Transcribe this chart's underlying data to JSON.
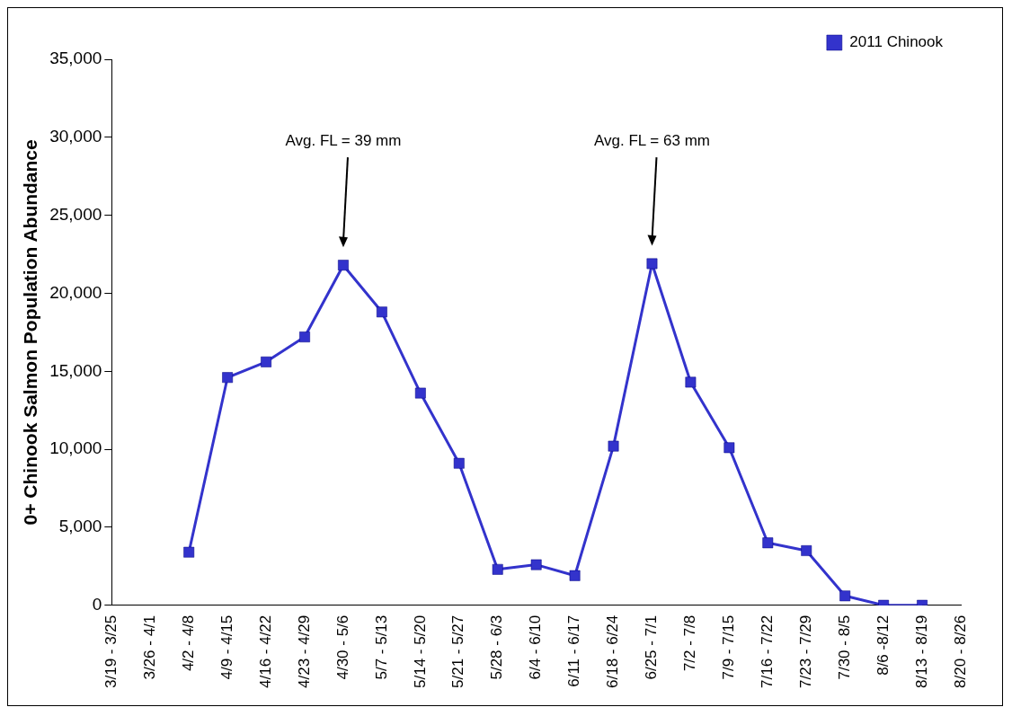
{
  "chart_data": {
    "type": "line",
    "ylabel": "0+ Chinook Salmon Population Abundance",
    "categories": [
      "3/19 - 3/25",
      "3/26 - 4/1",
      "4/2 - 4/8",
      "4/9 - 4/15",
      "4/16 - 4/22",
      "4/23 - 4/29",
      "4/30 - 5/6",
      "5/7 - 5/13",
      "5/14 - 5/20",
      "5/21 - 5/27",
      "5/28 - 6/3",
      "6/4 - 6/10",
      "6/11 - 6/17",
      "6/18 - 6/24",
      "6/25 - 7/1",
      "7/2 - 7/8",
      "7/9 - 7/15",
      "7/16 - 7/22",
      "7/23 - 7/29",
      "7/30 - 8/5",
      "8/6 -8/12",
      "8/13 - 8/19",
      "8/20 - 8/26"
    ],
    "series": [
      {
        "name": "2011 Chinook",
        "color": "#3333cc",
        "values": [
          null,
          null,
          3400,
          14600,
          15600,
          17200,
          21800,
          18800,
          13600,
          9100,
          2300,
          2600,
          1900,
          10200,
          21900,
          14300,
          10100,
          4000,
          3500,
          600,
          0,
          0,
          null
        ]
      }
    ],
    "ylim": [
      0,
      35000
    ],
    "yticks": [
      {
        "value": 0,
        "label": "0"
      },
      {
        "value": 5000,
        "label": "5,000"
      },
      {
        "value": 10000,
        "label": "10,000"
      },
      {
        "value": 15000,
        "label": "15,000"
      },
      {
        "value": 20000,
        "label": "20,000"
      },
      {
        "value": 25000,
        "label": "25,000"
      },
      {
        "value": 30000,
        "label": "30,000"
      },
      {
        "value": 35000,
        "label": "35,000"
      }
    ],
    "grid": false,
    "legend": "top right",
    "marker": "square",
    "line_style": "solid",
    "annotations": [
      "Avg. FL = 39 mm",
      "Avg. FL = 63 mm"
    ]
  }
}
